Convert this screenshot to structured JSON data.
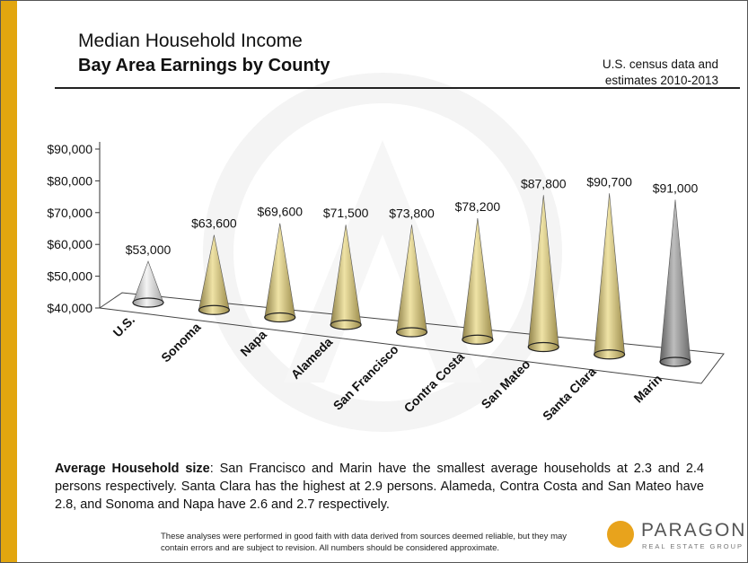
{
  "header": {
    "title": "Median Household Income",
    "subtitle": "Bay Area Earnings by County",
    "source_line1": "U.S. census data and",
    "source_line2": "estimates 2010-2013"
  },
  "chart_data": {
    "type": "bar",
    "style": "3d-cone",
    "title": "Median Household Income",
    "subtitle": "Bay Area Earnings by County",
    "categories": [
      "U.S.",
      "Sonoma",
      "Napa",
      "Alameda",
      "San Francisco",
      "Contra Costa",
      "San Mateo",
      "Santa Clara",
      "Marin"
    ],
    "values": [
      53000,
      63600,
      69600,
      71500,
      73800,
      78200,
      87800,
      90700,
      91000
    ],
    "data_labels": [
      "$53,000",
      "$63,600",
      "$69,600",
      "$71,500",
      "$73,800",
      "$78,200",
      "$87,800",
      "$90,700",
      "$91,000"
    ],
    "y_ticks": [
      "$40,000",
      "$50,000",
      "$60,000",
      "$70,000",
      "$80,000",
      "$90,000"
    ],
    "ylim": [
      40000,
      90000
    ],
    "colors": [
      "#cfcfcf",
      "#c9bb74",
      "#c9bb74",
      "#c9bb74",
      "#c9bb74",
      "#c9bb74",
      "#c9bb74",
      "#c9bb74",
      "#8d8d8d"
    ],
    "grid": false,
    "legend": "none"
  },
  "note": {
    "lead": "Average Household size",
    "text": ": San Francisco and Marin have the smallest average households at 2.3 and 2.4 persons respectively. Santa Clara has the highest at 2.9 persons. Alameda, Contra Costa and San Mateo have 2.8, and Sonoma and Napa have 2.6 and 2.7 respectively."
  },
  "footer": {
    "disclaimer": "These analyses were performed in good faith with data derived from sources  deemed reliable, but they may contain errors  and are subject to revision.  All numbers should be considered approximate.",
    "logo_name": "PARAGON",
    "logo_tag": "REAL ESTATE GROUP"
  },
  "colors": {
    "accent_bar": "#e2a60f",
    "logo": "#e8a31c"
  }
}
